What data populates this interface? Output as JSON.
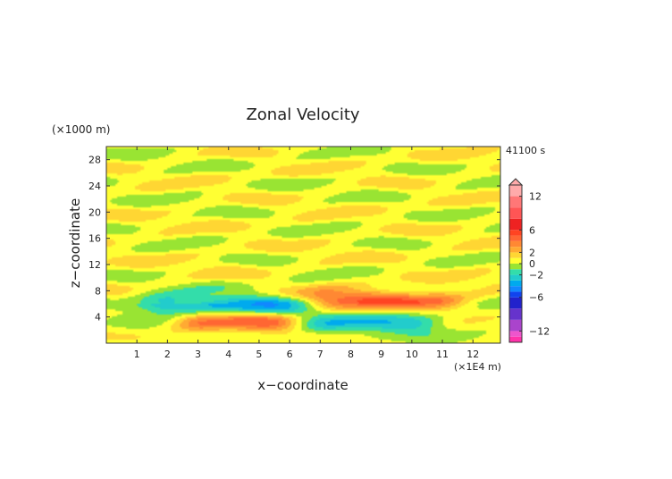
{
  "chart_data": {
    "type": "heatmap",
    "title": "Zonal Velocity",
    "xlabel": "x−coordinate",
    "ylabel": "z−coordinate",
    "x_unit": "(×1E4 m)",
    "y_unit": "(×1000 m)",
    "time_label": "41100 s",
    "xlim": [
      0,
      12.9
    ],
    "ylim": [
      0,
      30
    ],
    "x_ticks": [
      1,
      2,
      3,
      4,
      5,
      6,
      7,
      8,
      9,
      10,
      11,
      12
    ],
    "y_ticks": [
      4,
      8,
      12,
      16,
      20,
      24,
      28
    ],
    "colorbar": {
      "range": [
        -14,
        14
      ],
      "tick_values": [
        12,
        6,
        2,
        0,
        -2,
        -6,
        -12
      ],
      "tick_labels": [
        "12",
        "6",
        "2",
        "0",
        "−2",
        "−6",
        "−12"
      ],
      "bins": [
        {
          "lo": -14,
          "hi": -13,
          "color": "#ff33aa"
        },
        {
          "lo": -13,
          "hi": -12,
          "color": "#ee55cc"
        },
        {
          "lo": -12,
          "hi": -10,
          "color": "#aa44cc"
        },
        {
          "lo": -10,
          "hi": -8,
          "color": "#6633cc"
        },
        {
          "lo": -8,
          "hi": -6,
          "color": "#2222cc"
        },
        {
          "lo": -6,
          "hi": -5,
          "color": "#1144ee"
        },
        {
          "lo": -5,
          "hi": -4,
          "color": "#1188ff"
        },
        {
          "lo": -4,
          "hi": -3,
          "color": "#00aaee"
        },
        {
          "lo": -3,
          "hi": -2,
          "color": "#22cccc"
        },
        {
          "lo": -2,
          "hi": -1,
          "color": "#33ddaa"
        },
        {
          "lo": -1,
          "hi": 0,
          "color": "#99e433"
        },
        {
          "lo": 0,
          "hi": 1,
          "color": "#ffff33"
        },
        {
          "lo": 1,
          "hi": 2,
          "color": "#ffd633"
        },
        {
          "lo": 2,
          "hi": 3,
          "color": "#ffaa33"
        },
        {
          "lo": 3,
          "hi": 4,
          "color": "#ff8833"
        },
        {
          "lo": 4,
          "hi": 5,
          "color": "#ff6633"
        },
        {
          "lo": 5,
          "hi": 6,
          "color": "#ff4422"
        },
        {
          "lo": 6,
          "hi": 8,
          "color": "#ee2222"
        },
        {
          "lo": 8,
          "hi": 10,
          "color": "#ff5555"
        },
        {
          "lo": 10,
          "hi": 12,
          "color": "#ff7777"
        },
        {
          "lo": 12,
          "hi": 14,
          "color": "#ffaaaa"
        }
      ]
    },
    "field_features": [
      {
        "name": "positive jet left (low level)",
        "x_range": [
          2.7,
          5.8
        ],
        "z_center": 3.2,
        "peak": 4
      },
      {
        "name": "negative jet left (upper)",
        "x_range": [
          1.5,
          6.2
        ],
        "z_center": 5.8,
        "peak": -4
      },
      {
        "name": "positive jet right (upper)",
        "x_range": [
          6.9,
          11.2
        ],
        "z_center": 6.5,
        "peak": 4
      },
      {
        "name": "negative jet right (low level)",
        "x_range": [
          6.8,
          10.5
        ],
        "z_center": 3.0,
        "peak": -3
      },
      {
        "name": "background bands",
        "z_range": [
          8,
          30
        ],
        "value_range": [
          -1,
          2
        ]
      }
    ]
  }
}
